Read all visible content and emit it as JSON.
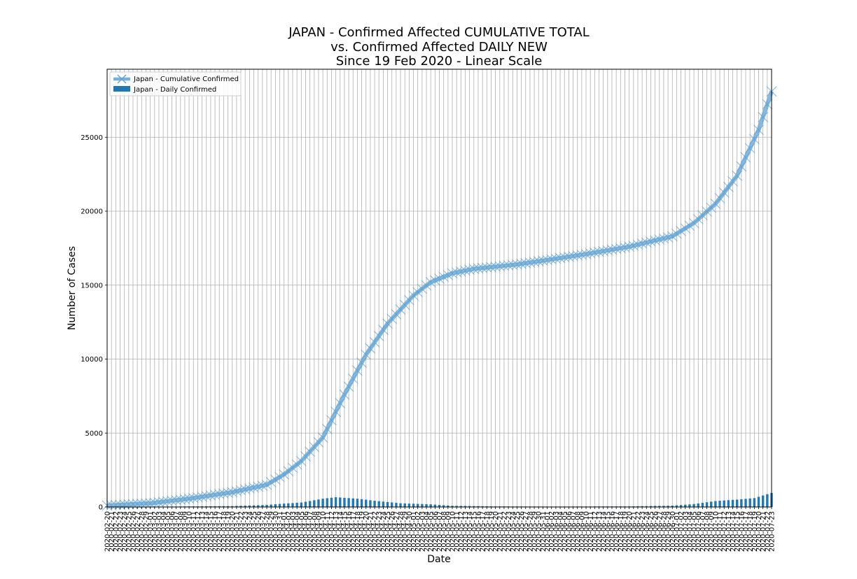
{
  "chart_data": {
    "type": "line",
    "title_lines": [
      "JAPAN - Confirmed Affected CUMULATIVE TOTAL",
      "vs. Confirmed Affected DAILY NEW",
      "Since 19 Feb 2020 - Linear Scale"
    ],
    "xlabel": "Date",
    "ylabel": "Number of Cases",
    "x_start": "2020-02-20",
    "x_end": "2020-07-23",
    "ylim": [
      0,
      29600
    ],
    "yticks": [
      0,
      5000,
      10000,
      15000,
      20000,
      25000
    ],
    "grid": true,
    "legend_position": "upper-left",
    "series": [
      {
        "name": "Japan - Cumulative Confirmed",
        "kind": "line",
        "color": "#5fa2d3",
        "anchors": [
          [
            "2020-02-20",
            100
          ],
          [
            "2020-03-01",
            250
          ],
          [
            "2020-03-10",
            560
          ],
          [
            "2020-03-20",
            1000
          ],
          [
            "2020-03-28",
            1500
          ],
          [
            "2020-04-01",
            2200
          ],
          [
            "2020-04-05",
            3100
          ],
          [
            "2020-04-10",
            4700
          ],
          [
            "2020-04-15",
            7600
          ],
          [
            "2020-04-20",
            10300
          ],
          [
            "2020-04-25",
            12400
          ],
          [
            "2020-05-01",
            14300
          ],
          [
            "2020-05-05",
            15200
          ],
          [
            "2020-05-10",
            15800
          ],
          [
            "2020-05-15",
            16100
          ],
          [
            "2020-05-25",
            16400
          ],
          [
            "2020-06-01",
            16700
          ],
          [
            "2020-06-10",
            17100
          ],
          [
            "2020-06-20",
            17600
          ],
          [
            "2020-06-30",
            18300
          ],
          [
            "2020-07-05",
            19200
          ],
          [
            "2020-07-10",
            20500
          ],
          [
            "2020-07-15",
            22400
          ],
          [
            "2020-07-20",
            25500
          ],
          [
            "2020-07-23",
            28100
          ]
        ]
      },
      {
        "name": "Japan - Daily Confirmed",
        "kind": "bar",
        "color": "#1f77b4",
        "anchors": [
          [
            "2020-02-20",
            10
          ],
          [
            "2020-03-01",
            20
          ],
          [
            "2020-03-10",
            40
          ],
          [
            "2020-03-20",
            60
          ],
          [
            "2020-03-28",
            140
          ],
          [
            "2020-04-01",
            230
          ],
          [
            "2020-04-05",
            300
          ],
          [
            "2020-04-10",
            560
          ],
          [
            "2020-04-13",
            660
          ],
          [
            "2020-04-18",
            560
          ],
          [
            "2020-04-22",
            420
          ],
          [
            "2020-04-28",
            250
          ],
          [
            "2020-05-05",
            180
          ],
          [
            "2020-05-10",
            80
          ],
          [
            "2020-05-20",
            40
          ],
          [
            "2020-06-01",
            30
          ],
          [
            "2020-06-20",
            40
          ],
          [
            "2020-06-30",
            90
          ],
          [
            "2020-07-05",
            200
          ],
          [
            "2020-07-10",
            400
          ],
          [
            "2020-07-15",
            500
          ],
          [
            "2020-07-19",
            600
          ],
          [
            "2020-07-23",
            950
          ]
        ]
      }
    ]
  }
}
